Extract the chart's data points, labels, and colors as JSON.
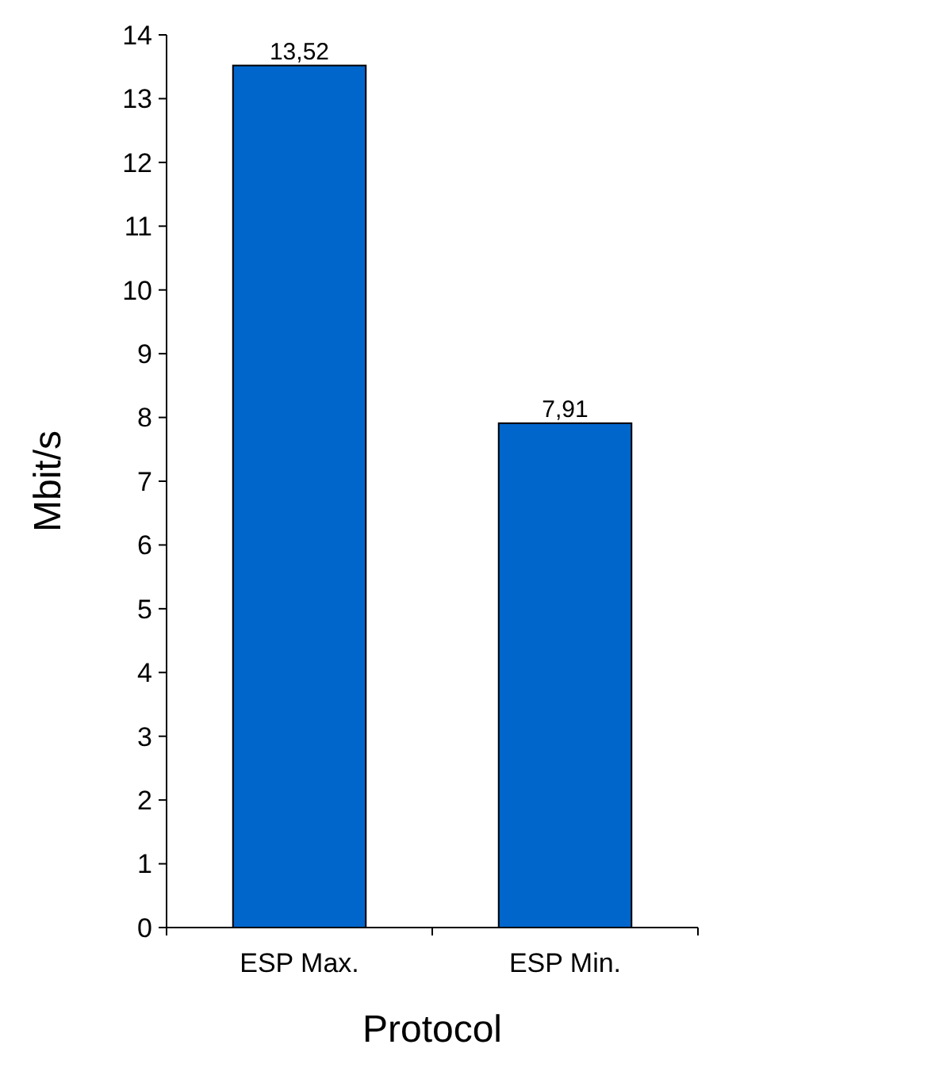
{
  "chart_data": {
    "type": "bar",
    "xlabel": "Protocol",
    "ylabel": "Mbit/s",
    "categories": [
      "ESP Max.",
      "ESP Min."
    ],
    "series": [
      {
        "color": "#0066cc",
        "values": [
          13.52,
          7.91
        ],
        "value_labels": [
          "13,52",
          "7,91"
        ]
      }
    ],
    "ylim": [
      0,
      14
    ],
    "yticks": [
      0,
      1,
      2,
      3,
      4,
      5,
      6,
      7,
      8,
      9,
      10,
      11,
      12,
      13,
      14
    ],
    "grid": false
  }
}
